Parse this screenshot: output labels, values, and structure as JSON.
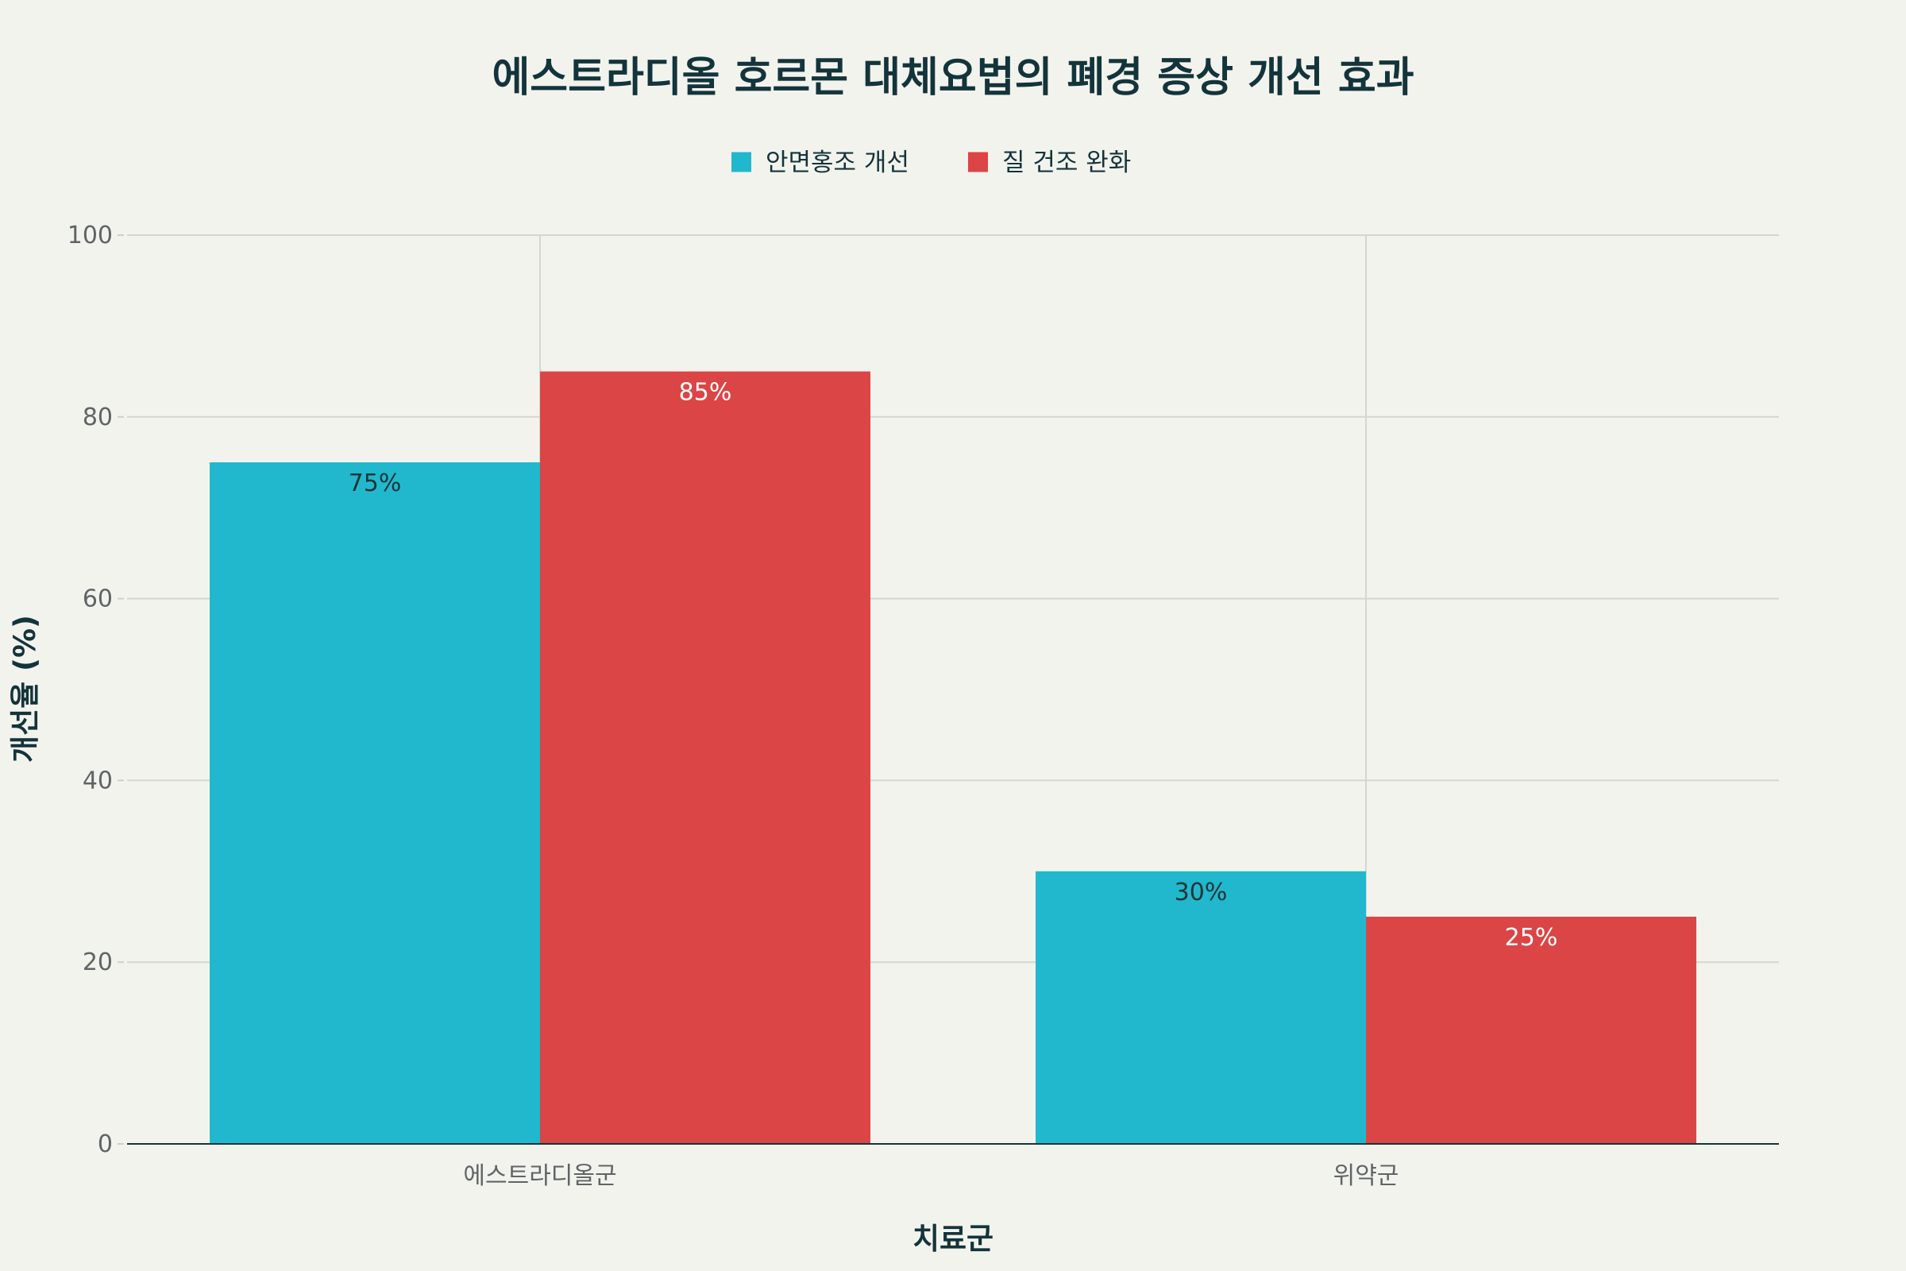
{
  "chart_data": {
    "type": "bar",
    "title": "에스트라디올 호르몬 대체요법의 폐경 증상 개선 효과",
    "xlabel": "치료군",
    "ylabel": "개선율 (%)",
    "categories": [
      "에스트라디올군",
      "위약군"
    ],
    "ylim": [
      0,
      100
    ],
    "yticks": [
      0,
      20,
      40,
      60,
      80,
      100
    ],
    "grid": true,
    "legend_position": "top-center",
    "series": [
      {
        "name": "안면홍조 개선",
        "color": "#21b8cd",
        "values": [
          75,
          30
        ],
        "labels": [
          "75%",
          "30%"
        ],
        "label_color": "#1f3438"
      },
      {
        "name": "질 건조 완화",
        "color": "#db4545",
        "values": [
          85,
          25
        ],
        "labels": [
          "85%",
          "25%"
        ],
        "label_color": "#ffffff"
      }
    ]
  }
}
